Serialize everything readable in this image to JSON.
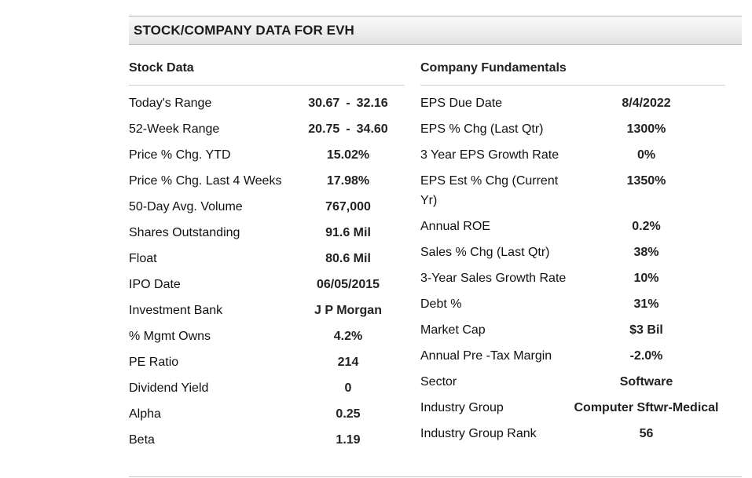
{
  "header": {
    "title": "STOCK/COMPANY DATA FOR EVH"
  },
  "stock_data": {
    "title": "Stock Data",
    "todays_range": {
      "label": "Today's Range",
      "low": "30.67",
      "high": "32.16",
      "sep": "-"
    },
    "week52_range": {
      "label": "52-Week Range",
      "low": "20.75",
      "high": "34.60",
      "sep": "-"
    },
    "rows": [
      {
        "label": "Price % Chg. YTD",
        "value": "15.02%"
      },
      {
        "label": "Price % Chg. Last 4 Weeks",
        "value": "17.98%"
      },
      {
        "label": "50-Day Avg. Volume",
        "value": "767,000"
      },
      {
        "label": "Shares Outstanding",
        "value": "91.6 Mil"
      },
      {
        "label": "Float",
        "value": "80.6 Mil"
      },
      {
        "label": "IPO Date",
        "value": "06/05/2015"
      },
      {
        "label": "Investment Bank",
        "value": "J P Morgan"
      },
      {
        "label": "% Mgmt Owns",
        "value": "4.2%"
      },
      {
        "label": "PE Ratio",
        "value": "214"
      },
      {
        "label": "Dividend Yield",
        "value": "0"
      },
      {
        "label": "Alpha",
        "value": "0.25"
      },
      {
        "label": "Beta",
        "value": "1.19"
      }
    ]
  },
  "company_fundamentals": {
    "title": "Company Fundamentals",
    "rows": [
      {
        "label": "EPS Due Date",
        "value": "8/4/2022"
      },
      {
        "label": "EPS % Chg (Last Qtr)",
        "value": "1300%"
      },
      {
        "label": "3 Year EPS Growth Rate",
        "value": "0%"
      },
      {
        "label": "EPS Est % Chg (Current Yr)",
        "value": "1350%"
      },
      {
        "label": "Annual ROE",
        "value": "0.2%"
      },
      {
        "label": "Sales % Chg (Last Qtr)",
        "value": "38%"
      },
      {
        "label": "3-Year Sales Growth Rate",
        "value": "10%"
      },
      {
        "label": "Debt %",
        "value": "31%"
      },
      {
        "label": "Market Cap",
        "value": "$3 Bil"
      },
      {
        "label": "Annual Pre -Tax Margin",
        "value": "-2.0%"
      },
      {
        "label": "Sector",
        "value": "Software"
      },
      {
        "label": "Industry Group",
        "value": "Computer Sftwr-Medical"
      },
      {
        "label": "Industry Group Rank",
        "value": "56"
      }
    ]
  }
}
